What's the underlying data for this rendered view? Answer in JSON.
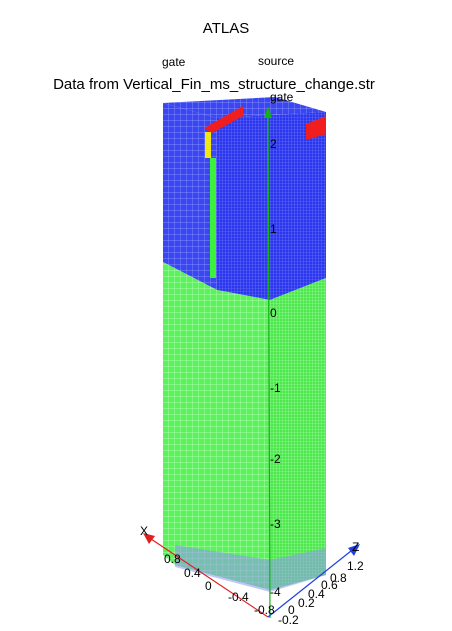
{
  "header": {
    "title": "ATLAS",
    "subtitle": "Data from Vertical_Fin_ms_structure_change.str"
  },
  "labels": {
    "gate_left": "gate",
    "source": "source",
    "gate_axis": "gate"
  },
  "axes": {
    "y_ticks": [
      "2",
      "1",
      "0",
      "-1",
      "-2",
      "-3",
      "-4"
    ],
    "x_name": "X",
    "x_ticks": [
      "0.8",
      "0.4",
      "0",
      "-0.4",
      "-0.8"
    ],
    "z_name": "Z",
    "z_ticks": [
      "1.2",
      "0.8",
      "0.6",
      "0.4",
      "0.2",
      "0",
      "-0.2"
    ]
  },
  "colors": {
    "oxide_mesh": "#2f3cf0",
    "silicon_mesh": "#3cf03c",
    "contact_red": "#f01e1e",
    "contact_yellow": "#f0e614",
    "axis_y": "#12b412",
    "axis_x": "#e02020",
    "axis_z": "#2040e0"
  }
}
